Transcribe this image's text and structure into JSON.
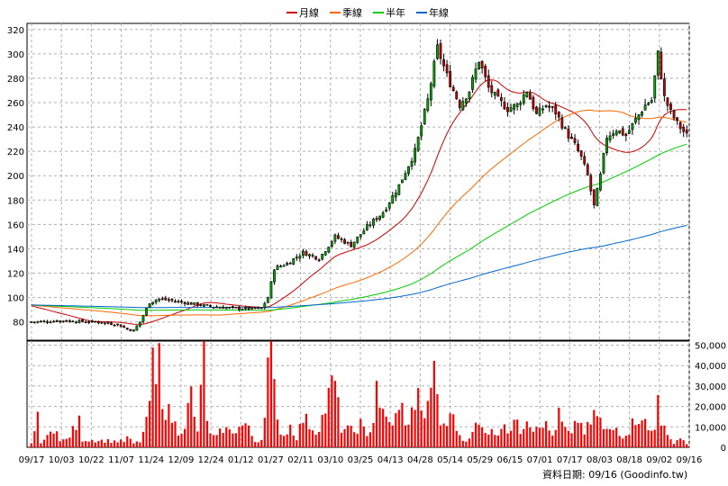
{
  "chart_data": {
    "type": "candlestick",
    "legend": [
      {
        "label": "月線",
        "color": "#cc0000"
      },
      {
        "label": "季線",
        "color": "#ff6600"
      },
      {
        "label": "半年",
        "color": "#00cc00"
      },
      {
        "label": "年線",
        "color": "#0066cc"
      }
    ],
    "price_axis": {
      "ylim": [
        65,
        325
      ],
      "ticks": [
        80,
        100,
        120,
        140,
        160,
        180,
        200,
        220,
        240,
        260,
        280,
        300,
        320
      ]
    },
    "volume_axis": {
      "ylim": [
        0,
        52000
      ],
      "ticks": [
        0,
        10000,
        20000,
        30000,
        40000,
        50000
      ],
      "tick_labels": [
        "0",
        "10,000",
        "20,000",
        "30,000",
        "40,000",
        "50,000"
      ]
    },
    "x_labels": [
      "09/17",
      "10/03",
      "10/22",
      "11/07",
      "11/24",
      "12/09",
      "12/24",
      "01/12",
      "01/27",
      "02/11",
      "03/10",
      "03/25",
      "04/13",
      "04/28",
      "05/14",
      "05/29",
      "06/15",
      "07/01",
      "07/17",
      "08/03",
      "08/18",
      "09/02",
      "09/16"
    ],
    "price_anchors": [
      [
        0,
        80
      ],
      [
        10,
        81
      ],
      [
        20,
        80
      ],
      [
        27,
        78
      ],
      [
        30,
        74
      ],
      [
        32,
        73
      ],
      [
        34,
        80
      ],
      [
        37,
        96
      ],
      [
        40,
        99
      ],
      [
        45,
        97
      ],
      [
        55,
        93
      ],
      [
        65,
        91
      ],
      [
        72,
        91
      ],
      [
        74,
        100
      ],
      [
        76,
        124
      ],
      [
        80,
        128
      ],
      [
        85,
        137
      ],
      [
        90,
        132
      ],
      [
        95,
        150
      ],
      [
        100,
        143
      ],
      [
        105,
        158
      ],
      [
        110,
        170
      ],
      [
        115,
        192
      ],
      [
        120,
        220
      ],
      [
        124,
        262
      ],
      [
        127,
        305
      ],
      [
        130,
        282
      ],
      [
        134,
        258
      ],
      [
        137,
        270
      ],
      [
        140,
        295
      ],
      [
        143,
        272
      ],
      [
        146,
        262
      ],
      [
        149,
        255
      ],
      [
        152,
        258
      ],
      [
        155,
        270
      ],
      [
        158,
        250
      ],
      [
        161,
        258
      ],
      [
        164,
        252
      ],
      [
        167,
        237
      ],
      [
        170,
        225
      ],
      [
        172,
        215
      ],
      [
        174,
        200
      ],
      [
        176,
        175
      ],
      [
        178,
        200
      ],
      [
        180,
        232
      ],
      [
        183,
        238
      ],
      [
        186,
        233
      ],
      [
        189,
        246
      ],
      [
        192,
        258
      ],
      [
        194,
        262
      ],
      [
        196,
        300
      ],
      [
        198,
        264
      ],
      [
        200,
        252
      ],
      [
        202,
        243
      ],
      [
        205,
        233
      ]
    ],
    "volume_anchors": [
      [
        0,
        2500
      ],
      [
        2,
        14000
      ],
      [
        3,
        3000
      ],
      [
        5,
        5000
      ],
      [
        8,
        12000
      ],
      [
        9,
        3000
      ],
      [
        11,
        4000
      ],
      [
        15,
        13000
      ],
      [
        16,
        4000
      ],
      [
        22,
        3500
      ],
      [
        29,
        3000
      ],
      [
        30,
        5000
      ],
      [
        32,
        2000
      ],
      [
        34,
        3000
      ],
      [
        36,
        12000
      ],
      [
        37,
        25000
      ],
      [
        38,
        40000
      ],
      [
        39,
        31000
      ],
      [
        40,
        44000
      ],
      [
        41,
        28000
      ],
      [
        42,
        20000
      ],
      [
        44,
        15000
      ],
      [
        46,
        8000
      ],
      [
        48,
        12000
      ],
      [
        50,
        27000
      ],
      [
        51,
        14000
      ],
      [
        52,
        9000
      ],
      [
        53,
        26000
      ],
      [
        54,
        51000
      ],
      [
        55,
        16000
      ],
      [
        56,
        6000
      ],
      [
        58,
        5000
      ],
      [
        60,
        10000
      ],
      [
        62,
        8000
      ],
      [
        65,
        10000
      ],
      [
        67,
        12000
      ],
      [
        69,
        6000
      ],
      [
        70,
        3000
      ],
      [
        72,
        4000
      ],
      [
        73,
        22000
      ],
      [
        74,
        44000
      ],
      [
        75,
        46000
      ],
      [
        76,
        28000
      ],
      [
        77,
        12000
      ],
      [
        79,
        6000
      ],
      [
        81,
        11000
      ],
      [
        83,
        5000
      ],
      [
        85,
        15000
      ],
      [
        87,
        12000
      ],
      [
        89,
        8000
      ],
      [
        91,
        15000
      ],
      [
        94,
        31000
      ],
      [
        95,
        33000
      ],
      [
        96,
        20000
      ],
      [
        97,
        10000
      ],
      [
        99,
        9000
      ],
      [
        101,
        8000
      ],
      [
        103,
        12000
      ],
      [
        105,
        5000
      ],
      [
        107,
        15000
      ],
      [
        108,
        34000
      ],
      [
        109,
        24000
      ],
      [
        110,
        16000
      ],
      [
        112,
        12000
      ],
      [
        114,
        15000
      ],
      [
        116,
        20000
      ],
      [
        118,
        10000
      ],
      [
        120,
        25000
      ],
      [
        121,
        33000
      ],
      [
        122,
        16000
      ],
      [
        124,
        19000
      ],
      [
        125,
        38000
      ],
      [
        126,
        35000
      ],
      [
        128,
        12000
      ],
      [
        130,
        12000
      ],
      [
        132,
        17000
      ],
      [
        134,
        5000
      ],
      [
        136,
        3000
      ],
      [
        138,
        10000
      ],
      [
        140,
        11000
      ],
      [
        142,
        7000
      ],
      [
        144,
        11000
      ],
      [
        146,
        5000
      ],
      [
        148,
        17000
      ],
      [
        149,
        8000
      ],
      [
        151,
        14000
      ],
      [
        153,
        8000
      ],
      [
        155,
        17000
      ],
      [
        157,
        10000
      ],
      [
        159,
        14000
      ],
      [
        161,
        11000
      ],
      [
        163,
        6000
      ],
      [
        165,
        16000
      ],
      [
        167,
        9000
      ],
      [
        169,
        6000
      ],
      [
        171,
        15000
      ],
      [
        173,
        8000
      ],
      [
        175,
        12000
      ],
      [
        177,
        18000
      ],
      [
        179,
        9000
      ],
      [
        181,
        8000
      ],
      [
        183,
        10000
      ],
      [
        185,
        6000
      ],
      [
        187,
        9000
      ],
      [
        189,
        15000
      ],
      [
        191,
        17000
      ],
      [
        193,
        8000
      ],
      [
        195,
        9000
      ],
      [
        196,
        35000
      ],
      [
        197,
        14000
      ],
      [
        199,
        5000
      ],
      [
        201,
        2500
      ],
      [
        203,
        5000
      ],
      [
        205,
        2000
      ]
    ],
    "ma_periods": {
      "月線": 20,
      "季線": 60,
      "半年": 120,
      "年線": 240
    },
    "colors": {
      "up": "#00aa00",
      "down": "#cc0000",
      "volume": "#ff0000",
      "grid": "#b0b0b0"
    }
  },
  "source_label": "資料日期: 09/16 (Goodinfo.tw)"
}
